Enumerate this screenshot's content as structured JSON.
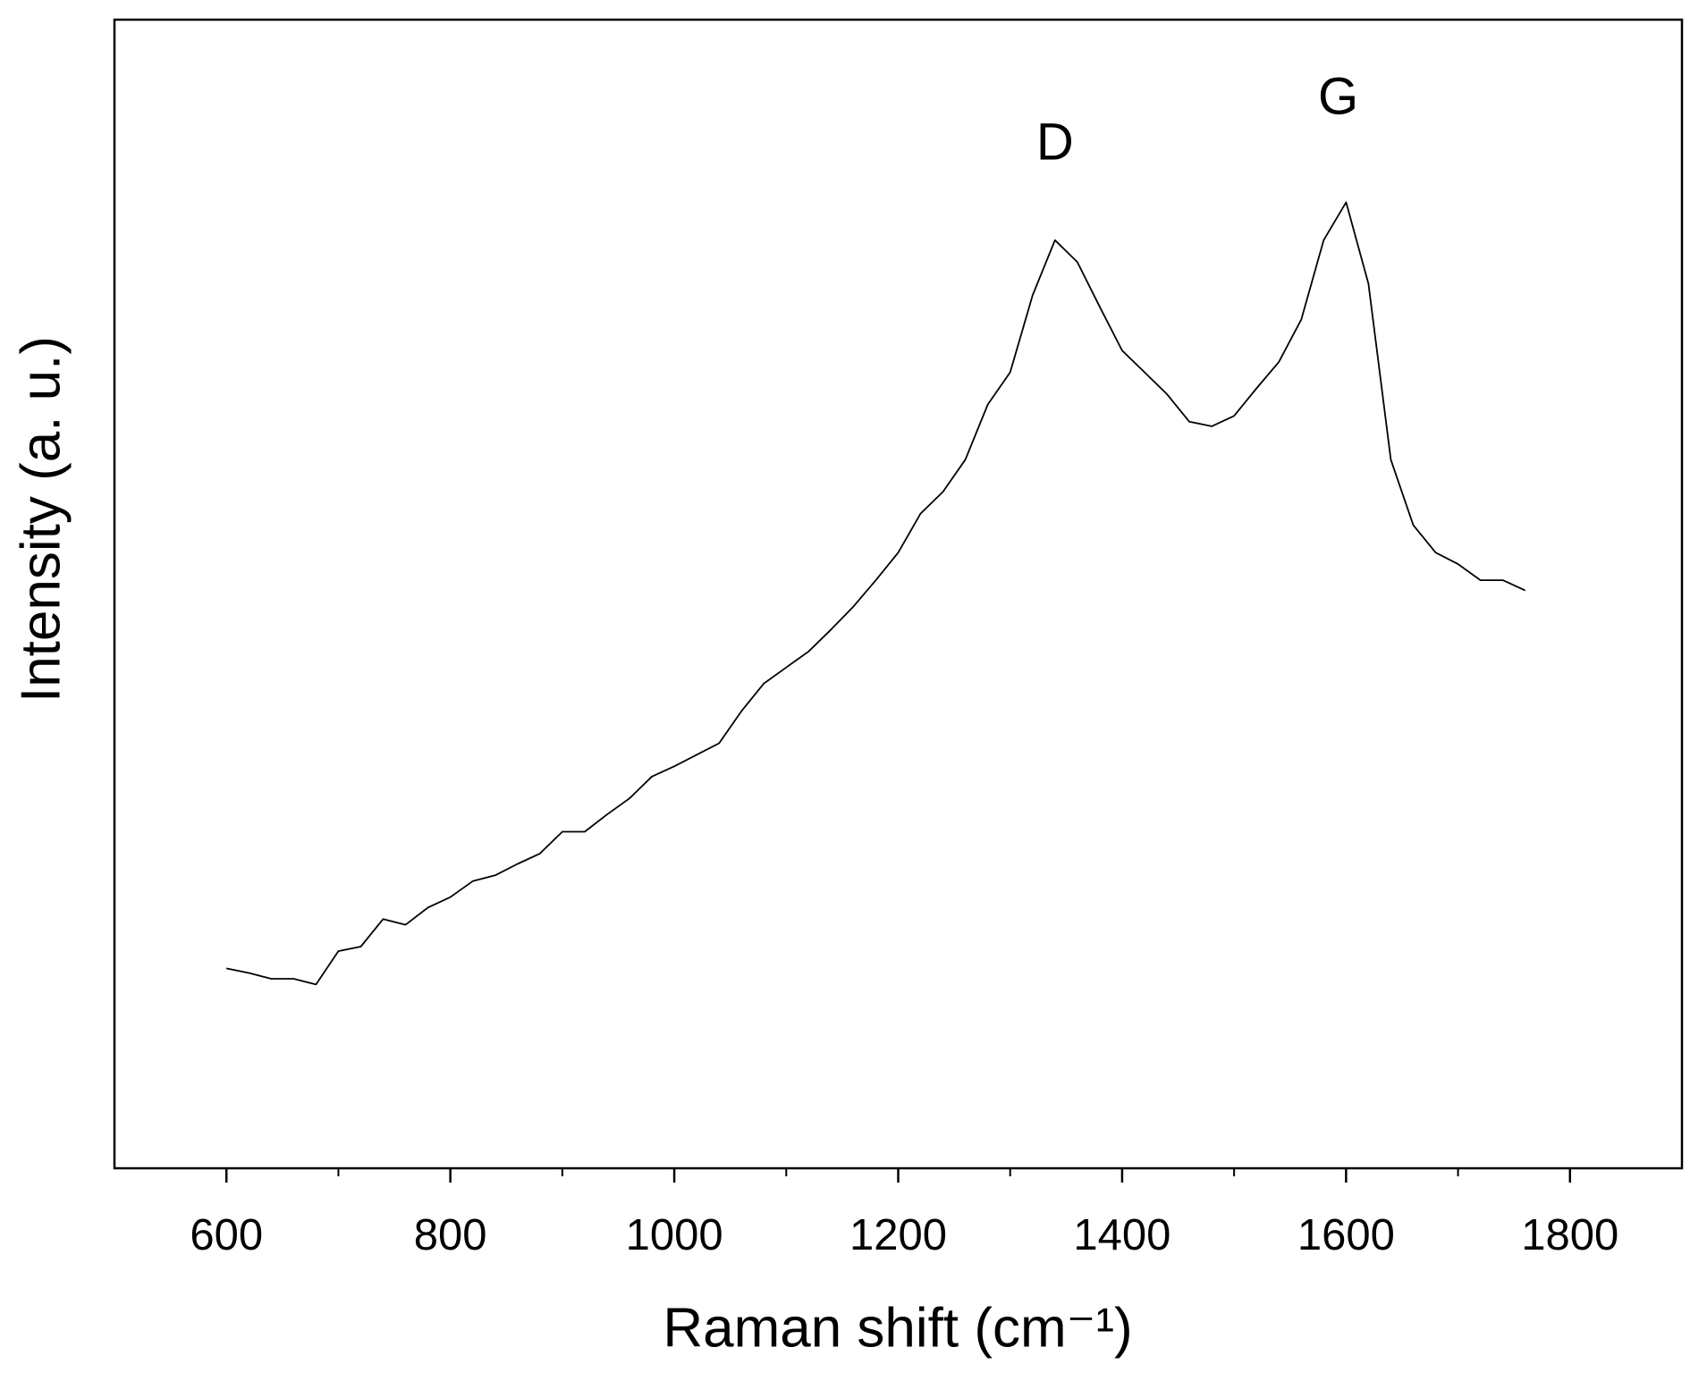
{
  "chart_data": {
    "type": "line",
    "x_label": "Raman shift (cm⁻¹)",
    "y_label": "Intensity (a. u.)",
    "color": "#000000",
    "x": [
      600,
      620,
      640,
      660,
      680,
      700,
      720,
      740,
      760,
      780,
      800,
      820,
      840,
      860,
      880,
      900,
      920,
      940,
      960,
      980,
      1000,
      1020,
      1040,
      1060,
      1080,
      1100,
      1120,
      1140,
      1160,
      1180,
      1200,
      1220,
      1240,
      1260,
      1280,
      1300,
      1320,
      1340,
      1360,
      1380,
      1400,
      1420,
      1440,
      1460,
      1480,
      1500,
      1520,
      1540,
      1560,
      1580,
      1600,
      1620,
      1640,
      1660,
      1680,
      1700,
      1720,
      1740,
      1760
    ],
    "values": [
      17.4,
      17,
      16.5,
      16.5,
      16,
      18.9,
      19.3,
      21.7,
      21.2,
      22.7,
      23.6,
      25,
      25.5,
      26.5,
      27.4,
      29.3,
      29.3,
      30.8,
      32.2,
      34.1,
      35,
      36,
      37,
      39.8,
      42.2,
      43.6,
      45,
      46.9,
      48.9,
      51.2,
      53.6,
      57,
      58.9,
      61.7,
      66.5,
      69.3,
      76,
      80.8,
      78.9,
      75,
      71.2,
      69.3,
      67.4,
      65,
      64.6,
      65.5,
      67.9,
      70.2,
      73.9,
      80.8,
      84.1,
      77,
      61.7,
      56,
      53.6,
      52.6,
      51.2,
      51.2,
      50.3
    ],
    "xlim": [
      500,
      1900
    ],
    "xticks": [
      600,
      800,
      1000,
      1200,
      1400,
      1600,
      1800
    ],
    "xminor_ticks": [
      700,
      900,
      1100,
      1300,
      1500,
      1700
    ],
    "ylim": [
      0,
      100
    ],
    "annotations": [
      {
        "text": "D",
        "x": 1340,
        "y": 89
      },
      {
        "text": "G",
        "x": 1593,
        "y": 93
      }
    ]
  }
}
